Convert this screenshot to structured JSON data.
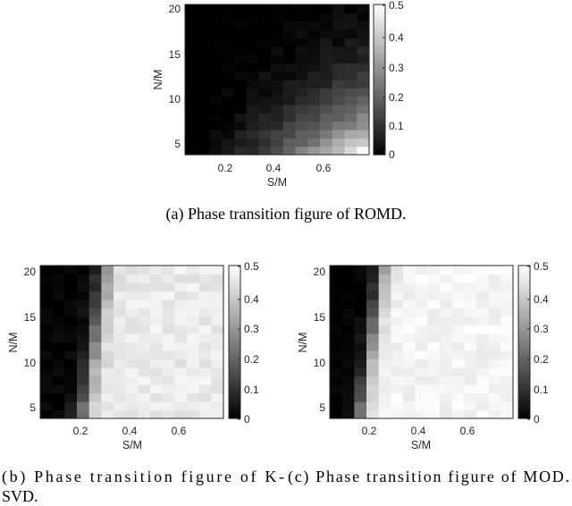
{
  "chart_data": [
    {
      "type": "heatmap",
      "xlabel": "S/M",
      "ylabel": "N/M",
      "x_ticks": [
        "0.2",
        "0.4",
        "0.6"
      ],
      "y_ticks": [
        "5",
        "10",
        "15",
        "20"
      ],
      "colorbar_ticks": [
        "0",
        "0.1",
        "0.2",
        "0.3",
        "0.4",
        "0.5"
      ],
      "colorbar_range": [
        0,
        0.5
      ],
      "colormap": "gray",
      "x_values": [
        0.05,
        0.1,
        0.15,
        0.2,
        0.25,
        0.3,
        0.35,
        0.4,
        0.45,
        0.5,
        0.55,
        0.6,
        0.65,
        0.7,
        0.75
      ],
      "y_values": [
        3,
        4,
        5,
        6,
        7,
        8,
        9,
        10,
        11,
        12,
        13,
        14,
        15,
        16,
        17,
        18,
        19,
        20
      ],
      "caption": "(a) Phase transition figure of ROMD."
    },
    {
      "type": "heatmap",
      "xlabel": "S/M",
      "ylabel": "N/M",
      "x_ticks": [
        "0.2",
        "0.4",
        "0.6"
      ],
      "y_ticks": [
        "5",
        "10",
        "15",
        "20"
      ],
      "colorbar_ticks": [
        "0",
        "0.1",
        "0.2",
        "0.3",
        "0.4",
        "0.5"
      ],
      "colorbar_range": [
        0,
        0.5
      ],
      "colormap": "gray",
      "x_values": [
        0.05,
        0.1,
        0.15,
        0.2,
        0.25,
        0.3,
        0.35,
        0.4,
        0.45,
        0.5,
        0.55,
        0.6,
        0.65,
        0.7,
        0.75
      ],
      "y_values": [
        3,
        4,
        5,
        6,
        7,
        8,
        9,
        10,
        11,
        12,
        13,
        14,
        15,
        16,
        17,
        18,
        19,
        20
      ],
      "caption_lines": [
        "(b)  Phase  transition  figure  of  K-",
        "SVD."
      ]
    },
    {
      "type": "heatmap",
      "xlabel": "S/M",
      "ylabel": "N/M",
      "x_ticks": [
        "0.2",
        "0.4",
        "0.6"
      ],
      "y_ticks": [
        "5",
        "10",
        "15",
        "20"
      ],
      "colorbar_ticks": [
        "0",
        "0.1",
        "0.2",
        "0.3",
        "0.4",
        "0.5"
      ],
      "colorbar_range": [
        0,
        0.5
      ],
      "colormap": "gray",
      "x_values": [
        0.05,
        0.1,
        0.15,
        0.2,
        0.25,
        0.3,
        0.35,
        0.4,
        0.45,
        0.5,
        0.55,
        0.6,
        0.65,
        0.7,
        0.75
      ],
      "y_values": [
        3,
        4,
        5,
        6,
        7,
        8,
        9,
        10,
        11,
        12,
        13,
        14,
        15,
        16,
        17,
        18,
        19,
        20
      ],
      "caption": "(c) Phase transition figure of MOD."
    }
  ]
}
